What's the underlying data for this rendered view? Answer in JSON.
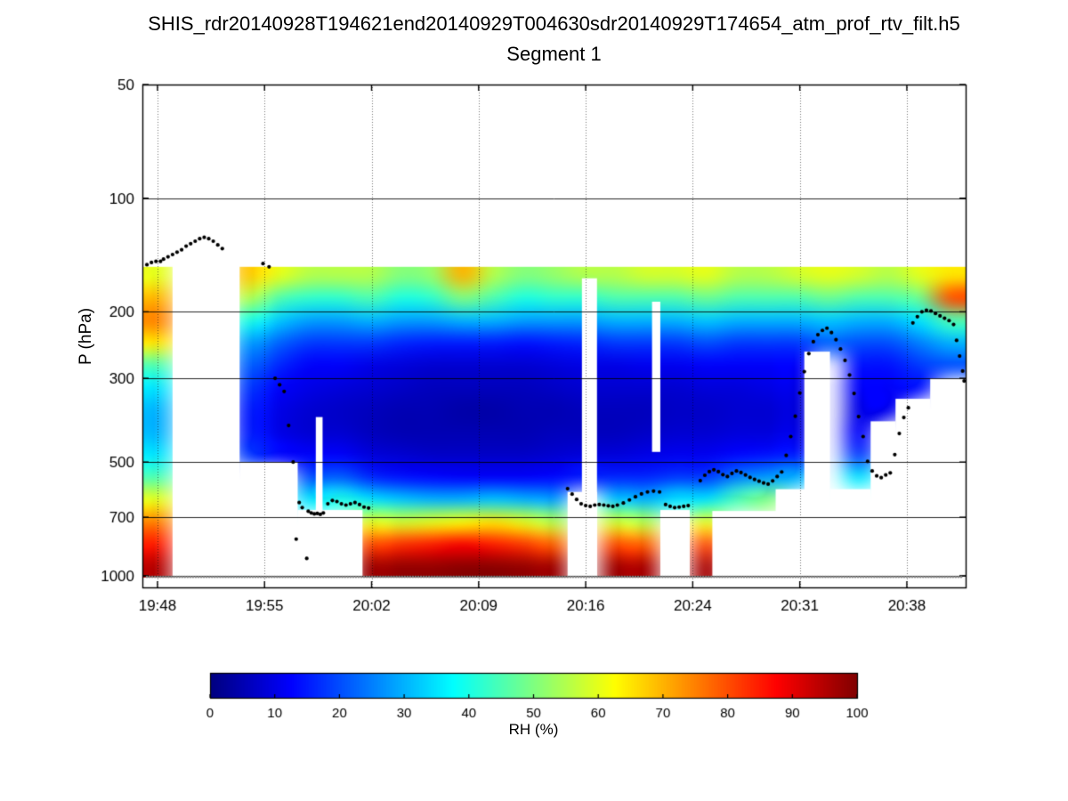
{
  "header": {
    "title_line1": "SHIS_rdr20140928T194621end20140929T004630sdr20140929T174654_atm_prof_rtv_filt.h5",
    "title_line2": "Segment 1"
  },
  "axes": {
    "ylabel": "P (hPa)",
    "y_ticks": [
      50,
      100,
      200,
      300,
      500,
      700,
      1000
    ],
    "y_range_hpa": [
      50,
      1074
    ],
    "y_scale": "log",
    "x_tick_labels": [
      "19:48",
      "19:55",
      "20:02",
      "20:09",
      "20:16",
      "20:24",
      "20:31",
      "20:38"
    ],
    "x_ticks_minutes": [
      48,
      55.1,
      62.2,
      69.3,
      76.4,
      83.5,
      90.6,
      97.7
    ],
    "x_range_minutes": [
      47,
      101.6
    ],
    "grid": "on"
  },
  "colorbar": {
    "label": "RH (%)",
    "ticks": [
      0,
      10,
      20,
      30,
      40,
      50,
      60,
      70,
      80,
      90,
      100
    ],
    "range": [
      0,
      100
    ],
    "colormap": "jet"
  },
  "chart_data": {
    "type": "heatmap",
    "value_units": "RH %",
    "colormap": "jet",
    "t_start_minutes": 47.0,
    "t_end_minutes": 101.6,
    "pressure_top_hpa": 150,
    "pressure_bottom_hpa": 1013,
    "pressure_levels_hpa": [
      160,
      184,
      211,
      242,
      277,
      318,
      365,
      418,
      479,
      550,
      630,
      722,
      828,
      950
    ],
    "rh_columns_percent": [
      [
        60,
        70,
        75,
        65,
        45,
        35,
        30,
        30,
        35,
        45,
        60,
        75,
        85,
        95
      ],
      [
        null,
        null,
        null,
        null,
        null,
        null,
        null,
        null,
        null,
        null,
        null,
        null,
        null,
        null
      ],
      [
        null,
        null,
        null,
        null,
        null,
        null,
        null,
        null,
        null,
        null,
        null,
        null,
        null,
        null
      ],
      [
        68,
        55,
        40,
        28,
        22,
        18,
        15,
        15,
        18,
        null,
        null,
        null,
        null,
        null
      ],
      [
        60,
        45,
        32,
        22,
        16,
        12,
        10,
        10,
        13,
        null,
        null,
        null,
        null,
        null
      ],
      [
        55,
        42,
        28,
        18,
        12,
        10,
        8,
        8,
        12,
        20,
        35,
        null,
        null,
        null
      ],
      [
        55,
        42,
        28,
        18,
        12,
        9,
        7,
        8,
        12,
        22,
        40,
        null,
        null,
        null
      ],
      [
        55,
        45,
        30,
        18,
        10,
        8,
        6,
        6,
        9,
        16,
        35,
        60,
        80,
        97
      ],
      [
        50,
        40,
        28,
        16,
        9,
        7,
        5,
        5,
        8,
        14,
        32,
        58,
        83,
        98
      ],
      [
        52,
        42,
        28,
        15,
        8,
        6,
        5,
        5,
        7,
        13,
        30,
        60,
        85,
        98
      ],
      [
        70,
        50,
        30,
        15,
        8,
        6,
        4,
        5,
        7,
        12,
        30,
        62,
        88,
        99
      ],
      [
        55,
        45,
        30,
        15,
        8,
        6,
        4,
        5,
        7,
        12,
        32,
        65,
        85,
        99
      ],
      [
        50,
        40,
        28,
        14,
        8,
        6,
        5,
        5,
        7,
        12,
        30,
        60,
        82,
        98
      ],
      [
        52,
        42,
        28,
        15,
        9,
        7,
        5,
        6,
        8,
        13,
        28,
        55,
        78,
        97
      ],
      [
        55,
        42,
        28,
        16,
        10,
        8,
        6,
        6,
        9,
        15,
        null,
        null,
        null,
        null
      ],
      [
        55,
        45,
        30,
        18,
        10,
        8,
        6,
        6,
        9,
        16,
        32,
        58,
        80,
        97
      ],
      [
        58,
        45,
        30,
        18,
        11,
        8,
        6,
        7,
        10,
        16,
        30,
        55,
        78,
        96
      ],
      [
        58,
        45,
        30,
        18,
        11,
        8,
        7,
        8,
        11,
        18,
        35,
        null,
        null,
        null
      ],
      [
        60,
        48,
        32,
        20,
        12,
        9,
        7,
        8,
        11,
        18,
        35,
        60,
        80,
        96
      ],
      [
        55,
        45,
        30,
        18,
        12,
        9,
        8,
        9,
        13,
        25,
        45,
        null,
        null,
        null
      ],
      [
        55,
        45,
        30,
        18,
        12,
        10,
        8,
        9,
        14,
        28,
        50,
        null,
        null,
        null
      ],
      [
        58,
        45,
        30,
        18,
        12,
        10,
        9,
        10,
        15,
        30,
        null,
        null,
        null,
        null
      ],
      [
        60,
        48,
        32,
        22,
        null,
        null,
        null,
        null,
        null,
        null,
        null,
        null,
        null,
        null
      ],
      [
        58,
        45,
        30,
        20,
        14,
        12,
        10,
        12,
        18,
        35,
        null,
        null,
        null,
        null
      ],
      [
        55,
        45,
        30,
        20,
        14,
        12,
        11,
        null,
        null,
        null,
        null,
        null,
        null,
        null
      ],
      [
        60,
        48,
        35,
        25,
        18,
        14,
        null,
        null,
        null,
        null,
        null,
        null,
        null,
        null
      ],
      [
        65,
        80,
        45,
        30,
        20,
        null,
        null,
        null,
        null,
        null,
        null,
        null,
        null,
        null
      ]
    ],
    "no_data_masks": [
      [
        47.0,
        101.6,
        50,
        152
      ],
      [
        47.0,
        101.6,
        1013,
        1074
      ],
      [
        49.0,
        53.45,
        50,
        1074
      ],
      [
        53.45,
        57.3,
        500,
        1013
      ],
      [
        57.3,
        61.6,
        670,
        1013
      ],
      [
        58.5,
        58.95,
        380,
        1013
      ],
      [
        75.2,
        77.15,
        600,
        1013
      ],
      [
        76.15,
        77.15,
        163,
        1013
      ],
      [
        80.8,
        81.35,
        188,
        470
      ],
      [
        81.35,
        83.3,
        670,
        1013
      ],
      [
        84.8,
        90.95,
        674,
        1013
      ],
      [
        89.0,
        90.95,
        590,
        1013
      ],
      [
        90.9,
        92.6,
        255,
        1013
      ],
      [
        92.6,
        95.3,
        590,
        1013
      ],
      [
        95.3,
        96.95,
        390,
        1013
      ],
      [
        96.95,
        99.25,
        340,
        1013
      ],
      [
        99.25,
        101.6,
        300,
        1013
      ]
    ],
    "cloud_top_markers": [
      [
        47.3,
        150
      ],
      [
        47.6,
        148
      ],
      [
        47.9,
        147
      ],
      [
        48.2,
        147
      ],
      [
        48.4,
        145
      ],
      [
        48.7,
        143
      ],
      [
        49.0,
        141
      ],
      [
        49.3,
        139
      ],
      [
        49.6,
        137
      ],
      [
        49.9,
        134
      ],
      [
        50.2,
        132
      ],
      [
        50.5,
        130
      ],
      [
        50.8,
        128
      ],
      [
        51.1,
        127
      ],
      [
        51.4,
        128
      ],
      [
        51.7,
        130
      ],
      [
        52.0,
        133
      ],
      [
        52.3,
        136
      ],
      [
        55.0,
        149
      ],
      [
        55.4,
        152
      ],
      [
        55.8,
        300
      ],
      [
        56.1,
        312
      ],
      [
        56.4,
        325
      ],
      [
        56.7,
        400
      ],
      [
        57.0,
        500
      ],
      [
        57.2,
        800
      ],
      [
        57.4,
        640
      ],
      [
        57.6,
        660
      ],
      [
        57.9,
        900
      ],
      [
        58.0,
        675
      ],
      [
        58.2,
        682
      ],
      [
        58.4,
        686
      ],
      [
        58.6,
        684
      ],
      [
        58.8,
        688
      ],
      [
        59.0,
        682
      ],
      [
        59.3,
        645
      ],
      [
        59.6,
        632
      ],
      [
        59.9,
        636
      ],
      [
        60.2,
        645
      ],
      [
        60.5,
        650
      ],
      [
        60.8,
        645
      ],
      [
        61.1,
        640
      ],
      [
        61.4,
        648
      ],
      [
        61.7,
        658
      ],
      [
        62.0,
        662
      ],
      [
        75.2,
        588
      ],
      [
        75.5,
        608
      ],
      [
        75.8,
        628
      ],
      [
        76.1,
        645
      ],
      [
        76.4,
        652
      ],
      [
        76.7,
        655
      ],
      [
        77.0,
        650
      ],
      [
        77.3,
        648
      ],
      [
        77.6,
        650
      ],
      [
        77.9,
        653
      ],
      [
        78.2,
        655
      ],
      [
        78.5,
        650
      ],
      [
        78.9,
        642
      ],
      [
        79.3,
        630
      ],
      [
        79.7,
        618
      ],
      [
        80.1,
        607
      ],
      [
        80.5,
        600
      ],
      [
        80.9,
        597
      ],
      [
        81.3,
        600
      ],
      [
        81.7,
        648
      ],
      [
        82.0,
        655
      ],
      [
        82.3,
        660
      ],
      [
        82.6,
        658
      ],
      [
        82.9,
        655
      ],
      [
        83.2,
        652
      ],
      [
        84.0,
        560
      ],
      [
        84.3,
        542
      ],
      [
        84.6,
        530
      ],
      [
        84.9,
        524
      ],
      [
        85.2,
        530
      ],
      [
        85.5,
        540
      ],
      [
        85.8,
        546
      ],
      [
        86.1,
        536
      ],
      [
        86.4,
        528
      ],
      [
        86.7,
        533
      ],
      [
        87.0,
        541
      ],
      [
        87.3,
        549
      ],
      [
        87.6,
        556
      ],
      [
        87.9,
        562
      ],
      [
        88.2,
        568
      ],
      [
        88.5,
        572
      ],
      [
        88.8,
        561
      ],
      [
        89.1,
        546
      ],
      [
        89.4,
        531
      ],
      [
        89.7,
        480
      ],
      [
        90.0,
        428
      ],
      [
        90.3,
        378
      ],
      [
        90.6,
        328
      ],
      [
        90.9,
        288
      ],
      [
        91.2,
        258
      ],
      [
        91.5,
        240
      ],
      [
        91.8,
        230
      ],
      [
        92.1,
        224
      ],
      [
        92.4,
        221
      ],
      [
        92.7,
        227
      ],
      [
        93.0,
        237
      ],
      [
        93.3,
        251
      ],
      [
        93.6,
        269
      ],
      [
        93.9,
        294
      ],
      [
        94.2,
        329
      ],
      [
        94.5,
        379
      ],
      [
        94.8,
        428
      ],
      [
        95.1,
        498
      ],
      [
        95.4,
        528
      ],
      [
        95.7,
        544
      ],
      [
        96.0,
        550
      ],
      [
        96.3,
        541
      ],
      [
        96.6,
        534
      ],
      [
        96.9,
        478
      ],
      [
        97.2,
        420
      ],
      [
        97.5,
        381
      ],
      [
        97.8,
        359
      ],
      [
        98.1,
        214
      ],
      [
        98.4,
        206
      ],
      [
        98.7,
        200
      ],
      [
        99.0,
        198
      ],
      [
        99.3,
        199
      ],
      [
        99.6,
        202
      ],
      [
        99.9,
        205
      ],
      [
        100.2,
        208
      ],
      [
        100.5,
        211
      ],
      [
        100.8,
        216
      ],
      [
        101.0,
        238
      ],
      [
        101.2,
        262
      ],
      [
        101.4,
        287
      ],
      [
        101.5,
        305
      ]
    ],
    "surface_markers": {
      "pressure_hpa": 1007,
      "t_start": 47.3,
      "t_end": 101.4,
      "t_step": 0.18,
      "color": "#7e7e7e"
    }
  }
}
